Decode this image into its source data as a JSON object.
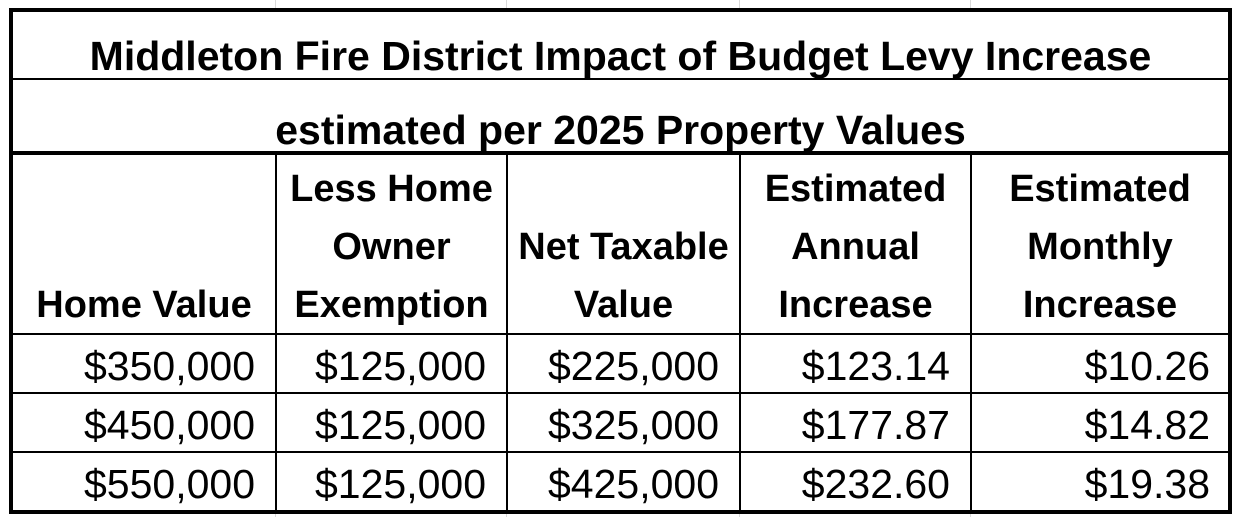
{
  "title": {
    "line1": "Middleton Fire District Impact of Budget Levy Increase",
    "line2": "estimated per 2025 Property Values"
  },
  "columns": [
    [
      "Home Value"
    ],
    [
      "Less Home",
      "Owner",
      "Exemption"
    ],
    [
      "Net Taxable",
      "Value"
    ],
    [
      "Estimated",
      "Annual",
      "Increase"
    ],
    [
      "Estimated",
      "Monthly",
      "Increase"
    ]
  ],
  "rows": [
    [
      "$350,000",
      "$125,000",
      "$225,000",
      "$123.14",
      "$10.26"
    ],
    [
      "$450,000",
      "$125,000",
      "$325,000",
      "$177.87",
      "$14.82"
    ],
    [
      "$550,000",
      "$125,000",
      "$425,000",
      "$232.60",
      "$19.38"
    ]
  ]
}
